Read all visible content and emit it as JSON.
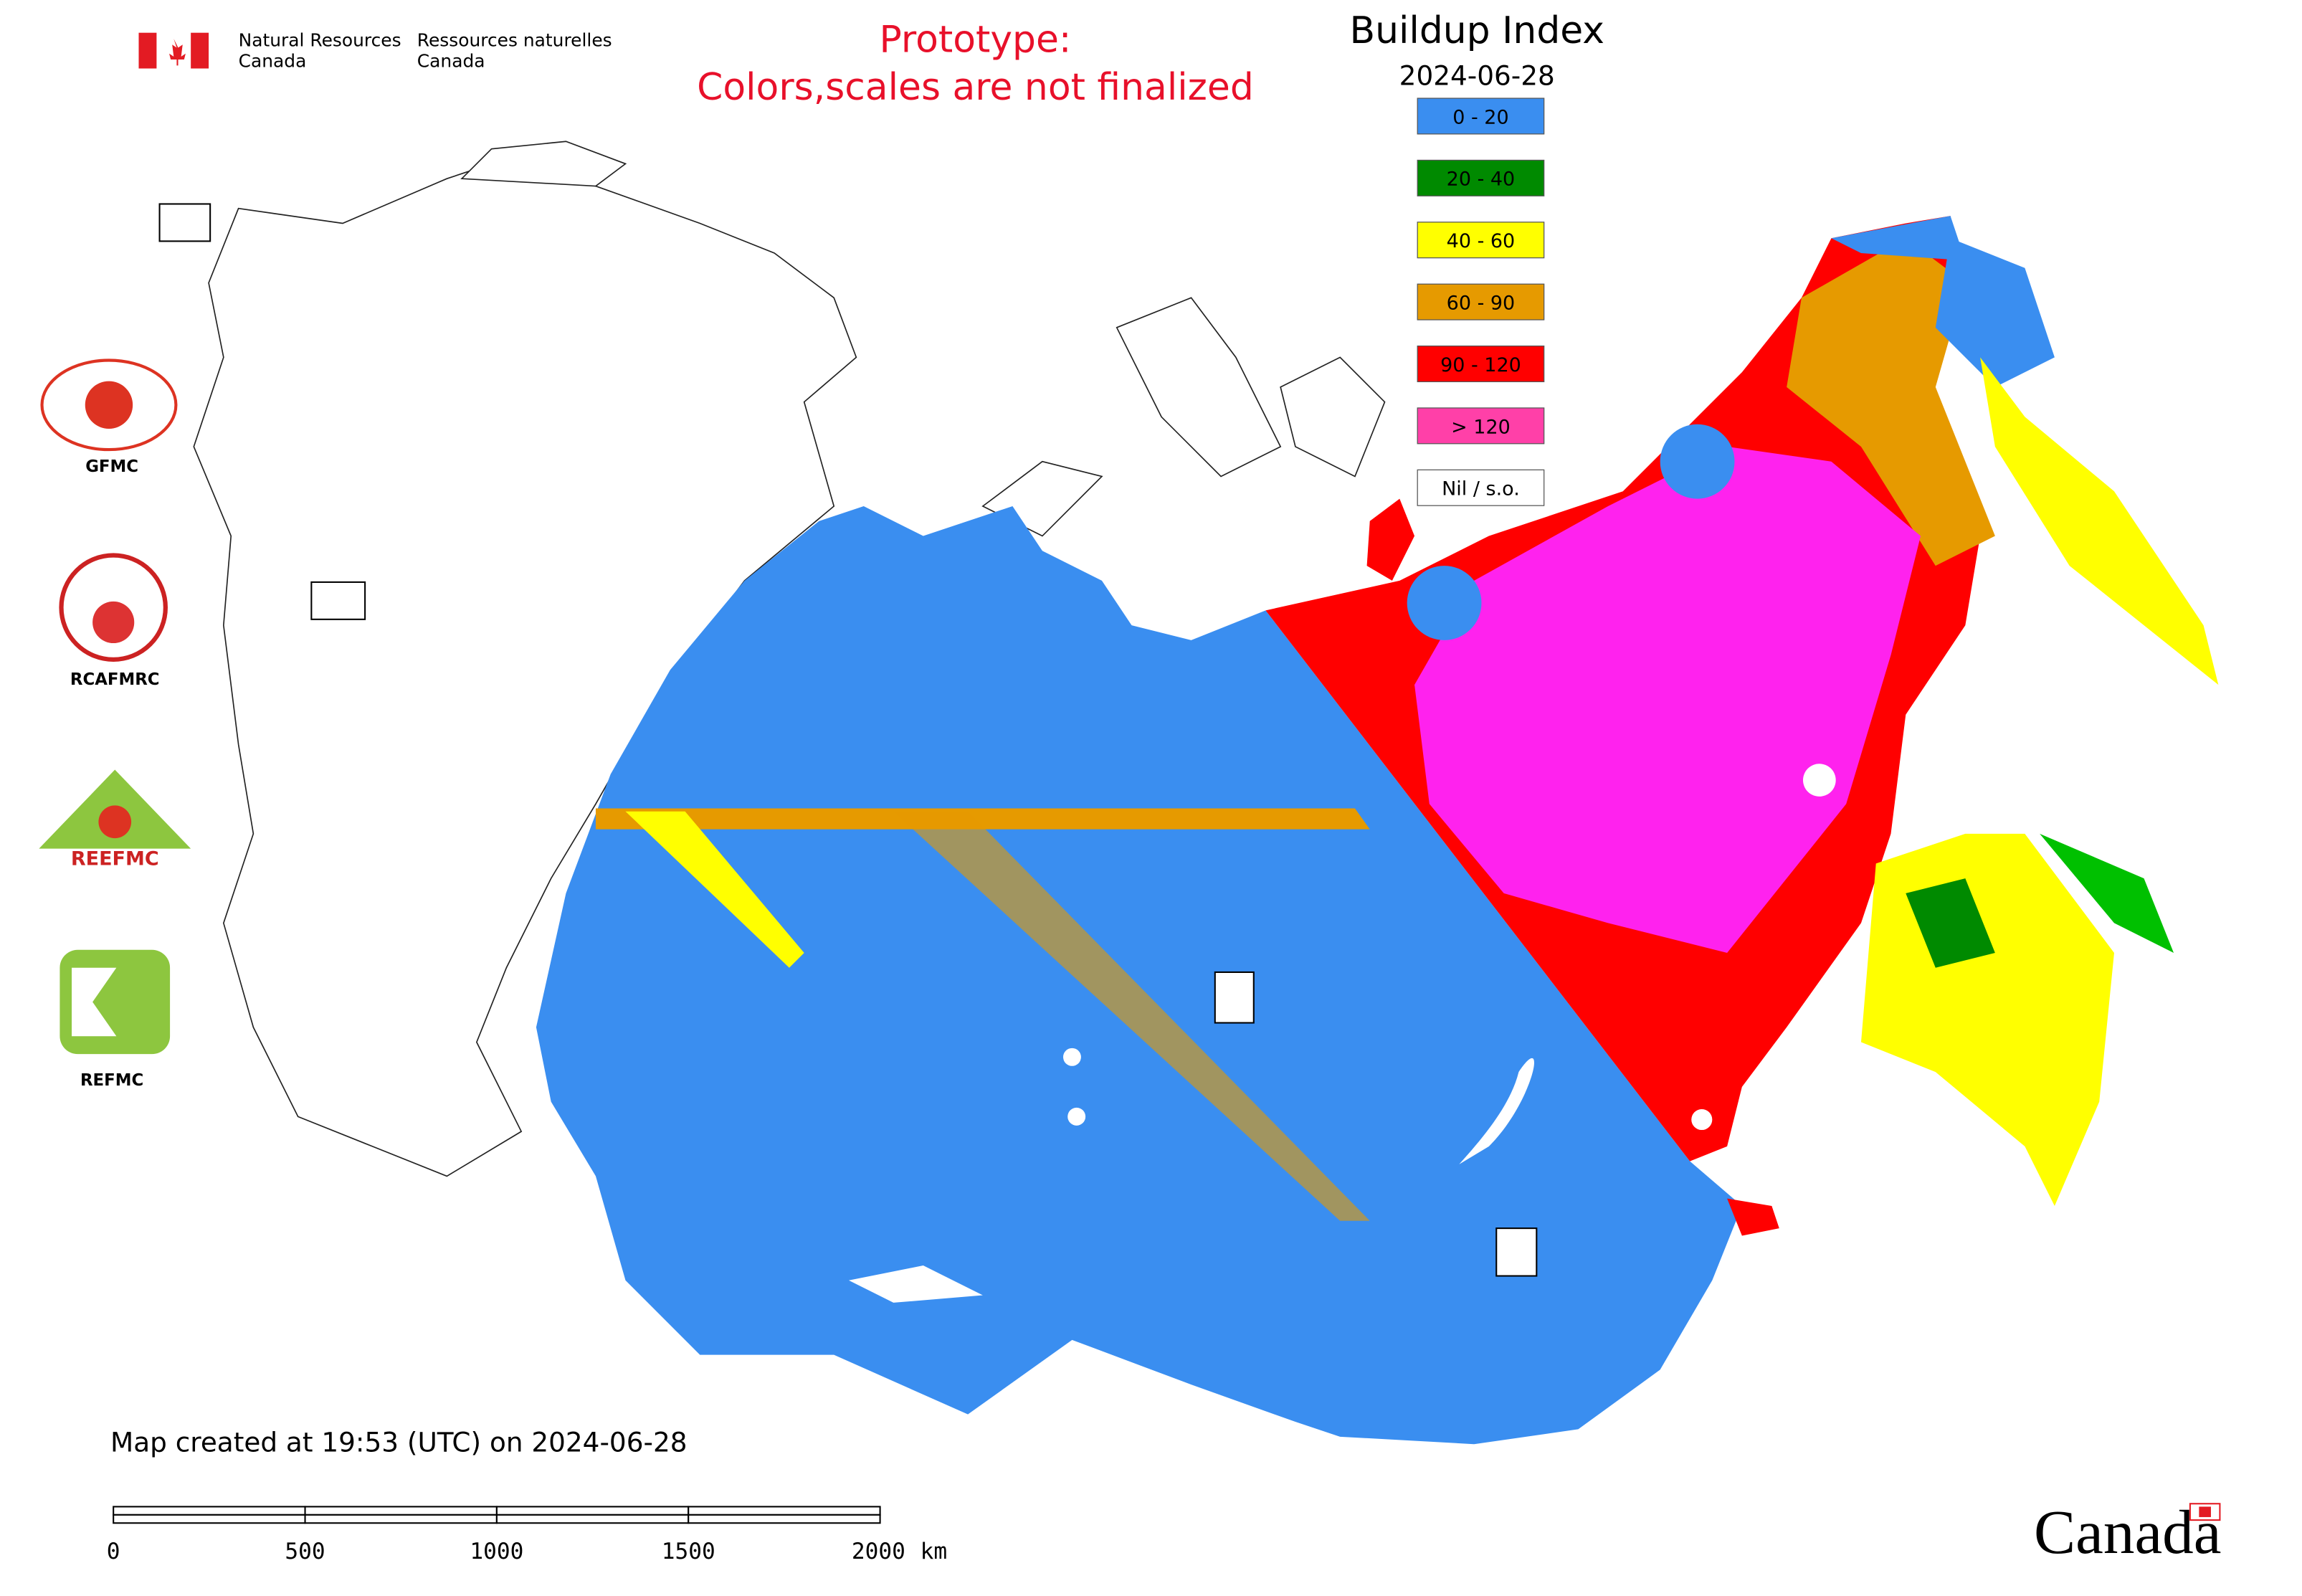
{
  "header": {
    "department_en": [
      "Natural Resources",
      "Canada"
    ],
    "department_fr": [
      "Ressources naturelles",
      "Canada"
    ],
    "notice": [
      "Prototype:",
      "Colors,scales are not finalized"
    ],
    "title": "Buildup Index",
    "date": "2024-06-28"
  },
  "legend": [
    {
      "label": "0 - 20",
      "color": "#3a8ef0"
    },
    {
      "label": "20 - 40",
      "color": "#008a00"
    },
    {
      "label": "40 - 60",
      "color": "#ffff00"
    },
    {
      "label": "60 - 90",
      "color": "#e69a00"
    },
    {
      "label": "90 - 120",
      "color": "#ff0000"
    },
    {
      "label": "> 120",
      "color": "#ff40a8"
    },
    {
      "label": "Nil / s.o.",
      "color": "#ffffff"
    }
  ],
  "logos": [
    "GFMC",
    "RCAFMRC",
    "REEFMC",
    "REFMC"
  ],
  "footer": {
    "created": "Map created at 19:53 (UTC) on 2024-06-28",
    "wordmark": "Canada"
  },
  "scale_bar": {
    "ticks": [
      0,
      500,
      1000,
      1500,
      2000
    ],
    "unit": "km"
  }
}
